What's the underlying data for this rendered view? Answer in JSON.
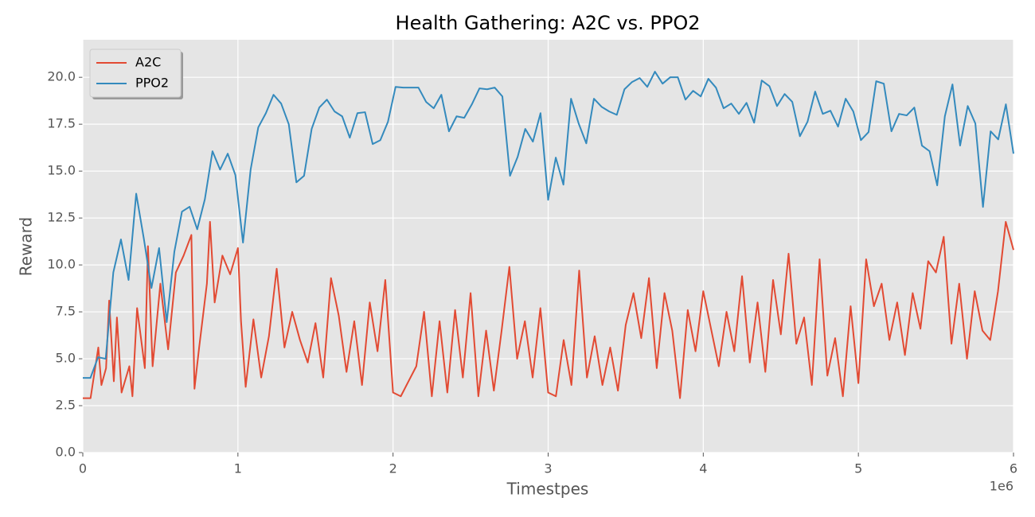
{
  "chart_data": {
    "type": "line",
    "title": "Health Gathering: A2C vs. PPO2",
    "x_label": "Timestpes",
    "y_label": "Reward",
    "x_offset_label": "1e6",
    "xlim": [
      0,
      6000000
    ],
    "ylim": [
      0,
      22
    ],
    "xticks": [
      0,
      {
        "value": 1000000,
        "label": "1"
      },
      {
        "value": 2000000,
        "label": "2"
      },
      {
        "value": 3000000,
        "label": "3"
      },
      {
        "value": 4000000,
        "label": "4"
      },
      {
        "value": 5000000,
        "label": "5"
      },
      {
        "value": 6000000,
        "label": "6"
      }
    ],
    "yticks": [
      {
        "value": 0,
        "label": "0.0"
      },
      2.5,
      {
        "value": 5,
        "label": "5.0"
      },
      7.5,
      {
        "value": 10,
        "label": "10.0"
      },
      12.5,
      {
        "value": 15,
        "label": "15.0"
      },
      17.5,
      {
        "value": 20,
        "label": "20.0"
      }
    ],
    "grid": true,
    "legend": "upper-left",
    "series": [
      {
        "name": "A2C",
        "color": "#e24a33",
        "x": [
          0,
          50000,
          100000,
          120000,
          150000,
          170000,
          200000,
          220000,
          250000,
          300000,
          320000,
          350000,
          400000,
          420000,
          450000,
          500000,
          550000,
          600000,
          650000,
          700000,
          720000,
          750000,
          800000,
          820000,
          850000,
          900000,
          950000,
          1000000,
          1020000,
          1050000,
          1100000,
          1150000,
          1200000,
          1250000,
          1300000,
          1350000,
          1400000,
          1450000,
          1500000,
          1550000,
          1600000,
          1650000,
          1700000,
          1750000,
          1800000,
          1850000,
          1900000,
          1950000,
          2000000,
          2050000,
          2100000,
          2150000,
          2200000,
          2250000,
          2300000,
          2350000,
          2400000,
          2450000,
          2500000,
          2550000,
          2600000,
          2650000,
          2700000,
          2750000,
          2800000,
          2850000,
          2900000,
          2950000,
          3000000,
          3050000,
          3100000,
          3150000,
          3200000,
          3250000,
          3300000,
          3350000,
          3400000,
          3450000,
          3500000,
          3550000,
          3600000,
          3650000,
          3700000,
          3750000,
          3800000,
          3850000,
          3900000,
          3950000,
          4000000,
          4050000,
          4100000,
          4150000,
          4200000,
          4250000,
          4300000,
          4350000,
          4400000,
          4450000,
          4500000,
          4550000,
          4600000,
          4650000,
          4700000,
          4750000,
          4800000,
          4850000,
          4900000,
          4950000,
          5000000,
          5050000,
          5100000,
          5150000,
          5200000,
          5250000,
          5300000,
          5350000,
          5400000,
          5450000,
          5500000,
          5550000,
          5600000,
          5650000,
          5700000,
          5750000,
          5800000,
          5850000,
          5900000,
          5950000,
          6000000
        ],
        "values": [
          2.9,
          2.9,
          5.6,
          3.6,
          4.5,
          8.1,
          3.8,
          7.2,
          3.2,
          4.6,
          3.0,
          7.7,
          4.5,
          11.0,
          4.6,
          9.0,
          5.5,
          9.6,
          10.5,
          11.6,
          3.4,
          5.6,
          9.0,
          12.3,
          8.0,
          10.5,
          9.5,
          10.9,
          7.0,
          3.5,
          7.1,
          4.0,
          6.2,
          9.8,
          5.6,
          7.5,
          6.0,
          4.8,
          6.9,
          4.0,
          9.3,
          7.3,
          4.3,
          7.0,
          3.6,
          8.0,
          5.4,
          9.2,
          3.2,
          3.0,
          3.8,
          4.6,
          7.5,
          3.0,
          7.0,
          3.2,
          7.6,
          4.0,
          8.5,
          3.0,
          6.5,
          3.3,
          6.5,
          9.9,
          5.0,
          7.0,
          4.0,
          7.7,
          3.2,
          3.0,
          6.0,
          3.6,
          9.7,
          4.0,
          6.2,
          3.6,
          5.6,
          3.3,
          6.8,
          8.5,
          6.1,
          9.3,
          4.5,
          8.5,
          6.5,
          2.9,
          7.6,
          5.4,
          8.6,
          6.6,
          4.6,
          7.5,
          5.4,
          9.4,
          4.8,
          8.0,
          4.3,
          9.2,
          6.3,
          10.6,
          5.8,
          7.2,
          3.6,
          10.3,
          4.1,
          6.1,
          3.0,
          7.8,
          3.7,
          10.3,
          7.8,
          9.0,
          6.0,
          8.0,
          5.2,
          8.5,
          6.6,
          10.2,
          9.6,
          11.5,
          5.8,
          9.0,
          5.0,
          8.6,
          6.5,
          6.0,
          8.6,
          12.3,
          10.8
        ]
      },
      {
        "name": "PPO2",
        "color": "#348abd",
        "x": [
          0,
          49180,
          98360,
          147540,
          196720,
          245900,
          295080,
          344260,
          393440,
          442620,
          491800,
          540980,
          590160,
          639340,
          688520,
          737700,
          786880,
          836060,
          885240,
          934420,
          983600,
          1032780,
          1081960,
          1131140,
          1180320,
          1229500,
          1278680,
          1327860,
          1377040,
          1426220,
          1475400,
          1524580,
          1573760,
          1622940,
          1672120,
          1721300,
          1770480,
          1819660,
          1868840,
          1918020,
          1967200,
          2016380,
          2065560,
          2114740,
          2163920,
          2213100,
          2262280,
          2311460,
          2360640,
          2409820,
          2459000,
          2508180,
          2557360,
          2606540,
          2655720,
          2704900,
          2754080,
          2803260,
          2852440,
          2901620,
          2950800,
          2999980,
          3049160,
          3098340,
          3147520,
          3196700,
          3245880,
          3295060,
          3344240,
          3393420,
          3442600,
          3491780,
          3540960,
          3590140,
          3639320,
          3688500,
          3737680,
          3786860,
          3836040,
          3885220,
          3934400,
          3983580,
          4032760,
          4081940,
          4131120,
          4180300,
          4229480,
          4278660,
          4327840,
          4377020,
          4426200,
          4475380,
          4524560,
          4573740,
          4622920,
          4672100,
          4721280,
          4770460,
          4819640,
          4868820,
          4918000,
          4967180,
          5016360,
          5065540,
          5114720,
          5163900,
          5213080,
          5262260,
          5311440,
          5360620,
          5409800,
          5458980,
          5508160,
          5557340,
          5606520,
          5655700,
          5704880,
          5754060,
          5803240,
          5852420,
          5901600,
          5950780,
          5999960
        ],
        "values": [
          3.98,
          3.98,
          5.08,
          5.0,
          9.6,
          11.36,
          9.2,
          13.8,
          11.4,
          8.77,
          10.9,
          6.95,
          10.7,
          12.84,
          13.1,
          11.9,
          13.5,
          16.06,
          15.08,
          15.93,
          14.79,
          11.19,
          15.08,
          17.33,
          18.09,
          19.07,
          18.6,
          17.5,
          14.4,
          14.75,
          17.25,
          18.39,
          18.81,
          18.18,
          17.92,
          16.78,
          18.09,
          18.14,
          16.44,
          16.65,
          17.63,
          19.49,
          19.45,
          19.45,
          19.45,
          18.69,
          18.35,
          19.07,
          17.12,
          17.92,
          17.84,
          18.56,
          19.41,
          19.36,
          19.45,
          18.98,
          14.75,
          15.76,
          17.25,
          16.57,
          18.09,
          13.47,
          15.72,
          14.28,
          18.86,
          17.54,
          16.48,
          18.86,
          18.43,
          18.18,
          18.0,
          19.36,
          19.75,
          19.96,
          19.49,
          20.3,
          19.66,
          20.0,
          20.0,
          18.81,
          19.28,
          18.98,
          19.92,
          19.45,
          18.35,
          18.6,
          18.05,
          18.64,
          17.58,
          19.83,
          19.53,
          18.47,
          19.11,
          18.69,
          16.86,
          17.63,
          19.24,
          18.05,
          18.22,
          17.37,
          18.86,
          18.18,
          16.65,
          17.08,
          19.79,
          19.66,
          17.12,
          18.05,
          17.97,
          18.39,
          16.36,
          16.06,
          14.24,
          17.92,
          19.62,
          16.36,
          18.47,
          17.54,
          13.09,
          17.12,
          16.69,
          18.56,
          15.93
        ]
      }
    ]
  }
}
